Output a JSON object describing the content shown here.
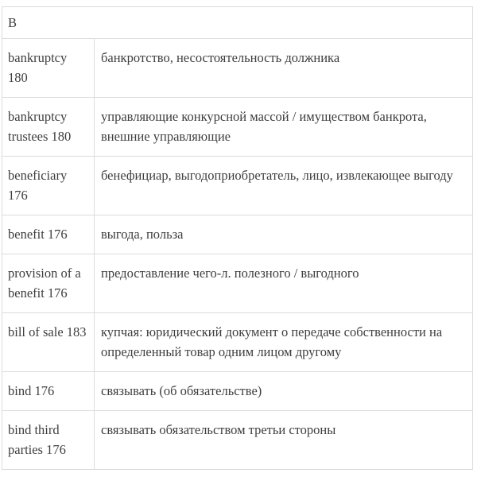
{
  "page": {
    "background_color": "#ffffff",
    "border_color": "#dcdcdc",
    "text_color": "#3e3e3e"
  },
  "glossary": {
    "section_letter": "B",
    "entries": [
      {
        "term": "bankruptcy 180",
        "definition": "банкротство, несостоятельность должника"
      },
      {
        "term": "bankruptcy trustees 180",
        "definition": "управляющие конкурсной массой / имуществом банкрота, внешние управляющие"
      },
      {
        "term": "beneficiary 176",
        "definition": "бенефициар, выгодоприобретатель, лицо, извлекающее выгоду"
      },
      {
        "term": "benefit 176",
        "definition": "выгода, польза"
      },
      {
        "term": "provision of a benefit 176",
        "definition": "предоставление чего-л. полезного / выгодного"
      },
      {
        "term": "bill of sale 183",
        "definition": "купчая: юридический документ о передаче собственности на определенный товар одним лицом другому"
      },
      {
        "term": "bind 176",
        "definition": "связывать (об обязательстве)"
      },
      {
        "term": "bind third parties 176",
        "definition": "связывать обязательством третьи стороны"
      }
    ]
  }
}
